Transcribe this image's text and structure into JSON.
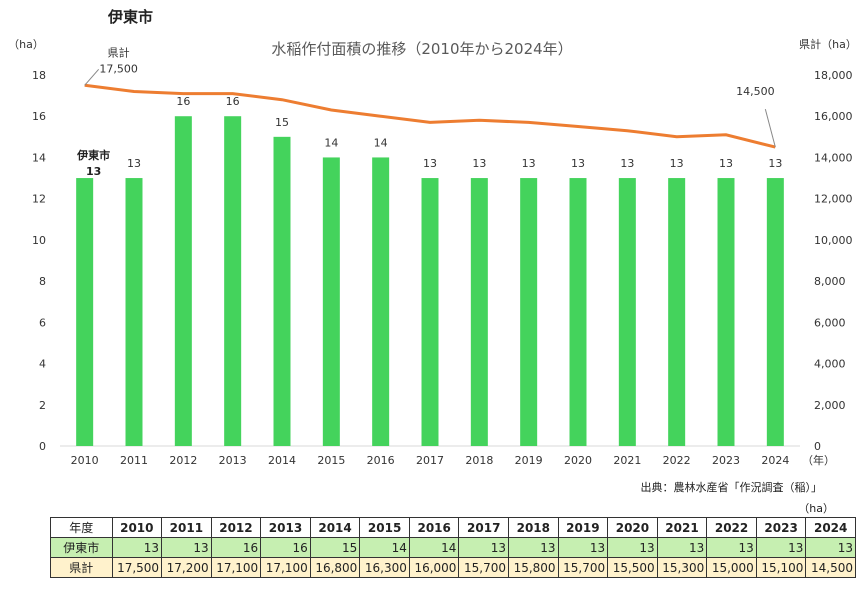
{
  "page_title": "伊東市",
  "colors": {
    "bar": "#44d35c",
    "line": "#ed7d31",
    "city_row": "#c6efb1",
    "pref_row": "#fff2cc"
  },
  "chart_data": {
    "type": "bar+line",
    "title": "水稲作付面積の推移（2010年から2024年）",
    "y_left_unit": "（ha）",
    "y_right_unit": "県計（ha）",
    "x_unit": "（年）",
    "categories": [
      "2010",
      "2011",
      "2012",
      "2013",
      "2014",
      "2015",
      "2016",
      "2017",
      "2018",
      "2019",
      "2020",
      "2021",
      "2022",
      "2023",
      "2024"
    ],
    "y_left_ticks": [
      "0",
      "2",
      "4",
      "6",
      "8",
      "10",
      "12",
      "14",
      "16",
      "18"
    ],
    "y_right_ticks": [
      "0",
      "2,000",
      "4,000",
      "6,000",
      "8,000",
      "10,000",
      "12,000",
      "14,000",
      "16,000",
      "18,000"
    ],
    "ylim_left": [
      0,
      18
    ],
    "ylim_right": [
      0,
      18000
    ],
    "series": [
      {
        "name": "伊東市",
        "axis": "left",
        "kind": "bar",
        "values": [
          13,
          13,
          16,
          16,
          15,
          14,
          14,
          13,
          13,
          13,
          13,
          13,
          13,
          13,
          13
        ]
      },
      {
        "name": "県計",
        "axis": "right",
        "kind": "line",
        "values": [
          17500,
          17200,
          17100,
          17100,
          16800,
          16300,
          16000,
          15700,
          15800,
          15700,
          15500,
          15300,
          15000,
          15100,
          14500
        ]
      }
    ],
    "annotations": {
      "city_label": "伊東市",
      "city_first_value": "13",
      "pref_label": "県計",
      "pref_first_value": "17,500",
      "pref_last_value": "14,500"
    },
    "grid": false,
    "legend": "none"
  },
  "source": "出典：農林水産省「作況調査（稲）」",
  "table": {
    "unit": "（ha）",
    "header_label": "年度",
    "years": [
      "2010",
      "2011",
      "2012",
      "2013",
      "2014",
      "2015",
      "2016",
      "2017",
      "2018",
      "2019",
      "2020",
      "2021",
      "2022",
      "2023",
      "2024"
    ],
    "rows": [
      {
        "label": "伊東市",
        "values": [
          "13",
          "13",
          "16",
          "16",
          "15",
          "14",
          "14",
          "13",
          "13",
          "13",
          "13",
          "13",
          "13",
          "13",
          "13"
        ]
      },
      {
        "label": "県計",
        "values": [
          "17,500",
          "17,200",
          "17,100",
          "17,100",
          "16,800",
          "16,300",
          "16,000",
          "15,700",
          "15,800",
          "15,700",
          "15,500",
          "15,300",
          "15,000",
          "15,100",
          "14,500"
        ]
      }
    ]
  }
}
